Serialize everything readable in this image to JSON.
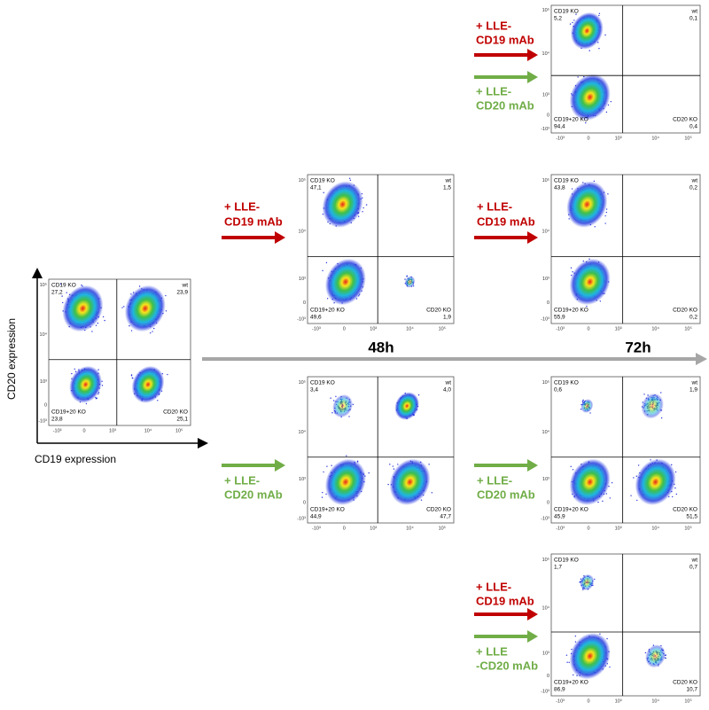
{
  "axis_labels": {
    "y": "CD20 expression",
    "x": "CD19 expression"
  },
  "ticks": {
    "y": [
      "10⁵",
      "10⁴",
      "10³",
      "0",
      "-10³"
    ],
    "x": [
      "-10³",
      "0",
      "10³",
      "10⁴",
      "10⁵"
    ]
  },
  "time_labels": [
    "48h",
    "72h"
  ],
  "plots": [
    {
      "gates": [
        {
          "name": "CD19 KO",
          "value": "27,2"
        },
        {
          "name": "wt",
          "value": "23,9"
        },
        {
          "name": "CD19+20 KO",
          "value": "23,8"
        },
        {
          "name": "CD20 KO",
          "value": "25,1"
        }
      ]
    },
    {
      "gates": [
        {
          "name": "CD19 KO",
          "value": "5,2"
        },
        {
          "name": "wt",
          "value": "0,1"
        },
        {
          "name": "CD19+20 KO",
          "value": "94,4"
        },
        {
          "name": "CD20 KO",
          "value": "0,4"
        }
      ]
    },
    {
      "gates": [
        {
          "name": "CD19 KO",
          "value": "47,1"
        },
        {
          "name": "wt",
          "value": "1,5"
        },
        {
          "name": "CD19+20 KO",
          "value": "49,6"
        },
        {
          "name": "CD20 KO",
          "value": "1,9"
        }
      ]
    },
    {
      "gates": [
        {
          "name": "CD19 KO",
          "value": "43,8"
        },
        {
          "name": "wt",
          "value": "0,2"
        },
        {
          "name": "CD19+20 KO",
          "value": "55,9"
        },
        {
          "name": "CD20 KO",
          "value": "0,2"
        }
      ]
    },
    {
      "gates": [
        {
          "name": "CD19 KO",
          "value": "3,4"
        },
        {
          "name": "wt",
          "value": "4,0"
        },
        {
          "name": "CD19+20 KO",
          "value": "44,9"
        },
        {
          "name": "CD20 KO",
          "value": "47,7"
        }
      ]
    },
    {
      "gates": [
        {
          "name": "CD19 KO",
          "value": "0,6"
        },
        {
          "name": "wt",
          "value": "1,9"
        },
        {
          "name": "CD19+20 KO",
          "value": "45,9"
        },
        {
          "name": "CD20 KO",
          "value": "51,5"
        }
      ]
    },
    {
      "gates": [
        {
          "name": "CD19 KO",
          "value": "1,7"
        },
        {
          "name": "wt",
          "value": "0,7"
        },
        {
          "name": "CD19+20 KO",
          "value": "86,9"
        },
        {
          "name": "CD20 KO",
          "value": "10,7"
        }
      ]
    }
  ],
  "treatments": [
    {
      "lines": [
        "+ LLE-",
        "CD19 mAb"
      ],
      "color": "#c00000"
    },
    {
      "lines": [
        "+ LLE-",
        "CD20 mAb"
      ],
      "color": "#70ad47"
    },
    {
      "lines": [
        "+ LLE-",
        "CD19 mAb"
      ],
      "color": "#c00000"
    },
    {
      "lines": [
        "+ LLE-",
        "CD19 mAb"
      ],
      "color": "#c00000"
    },
    {
      "lines": [
        "+ LLE-",
        "CD20 mAb"
      ],
      "color": "#70ad47"
    },
    {
      "lines": [
        "+ LLE-",
        "CD20 mAb"
      ],
      "color": "#70ad47"
    },
    {
      "lines": [
        "+ LLE-",
        "CD19 mAb"
      ],
      "color": "#c00000"
    },
    {
      "lines": [
        "+ LLE",
        "-CD20 mAb"
      ],
      "color": "#70ad47"
    }
  ]
}
